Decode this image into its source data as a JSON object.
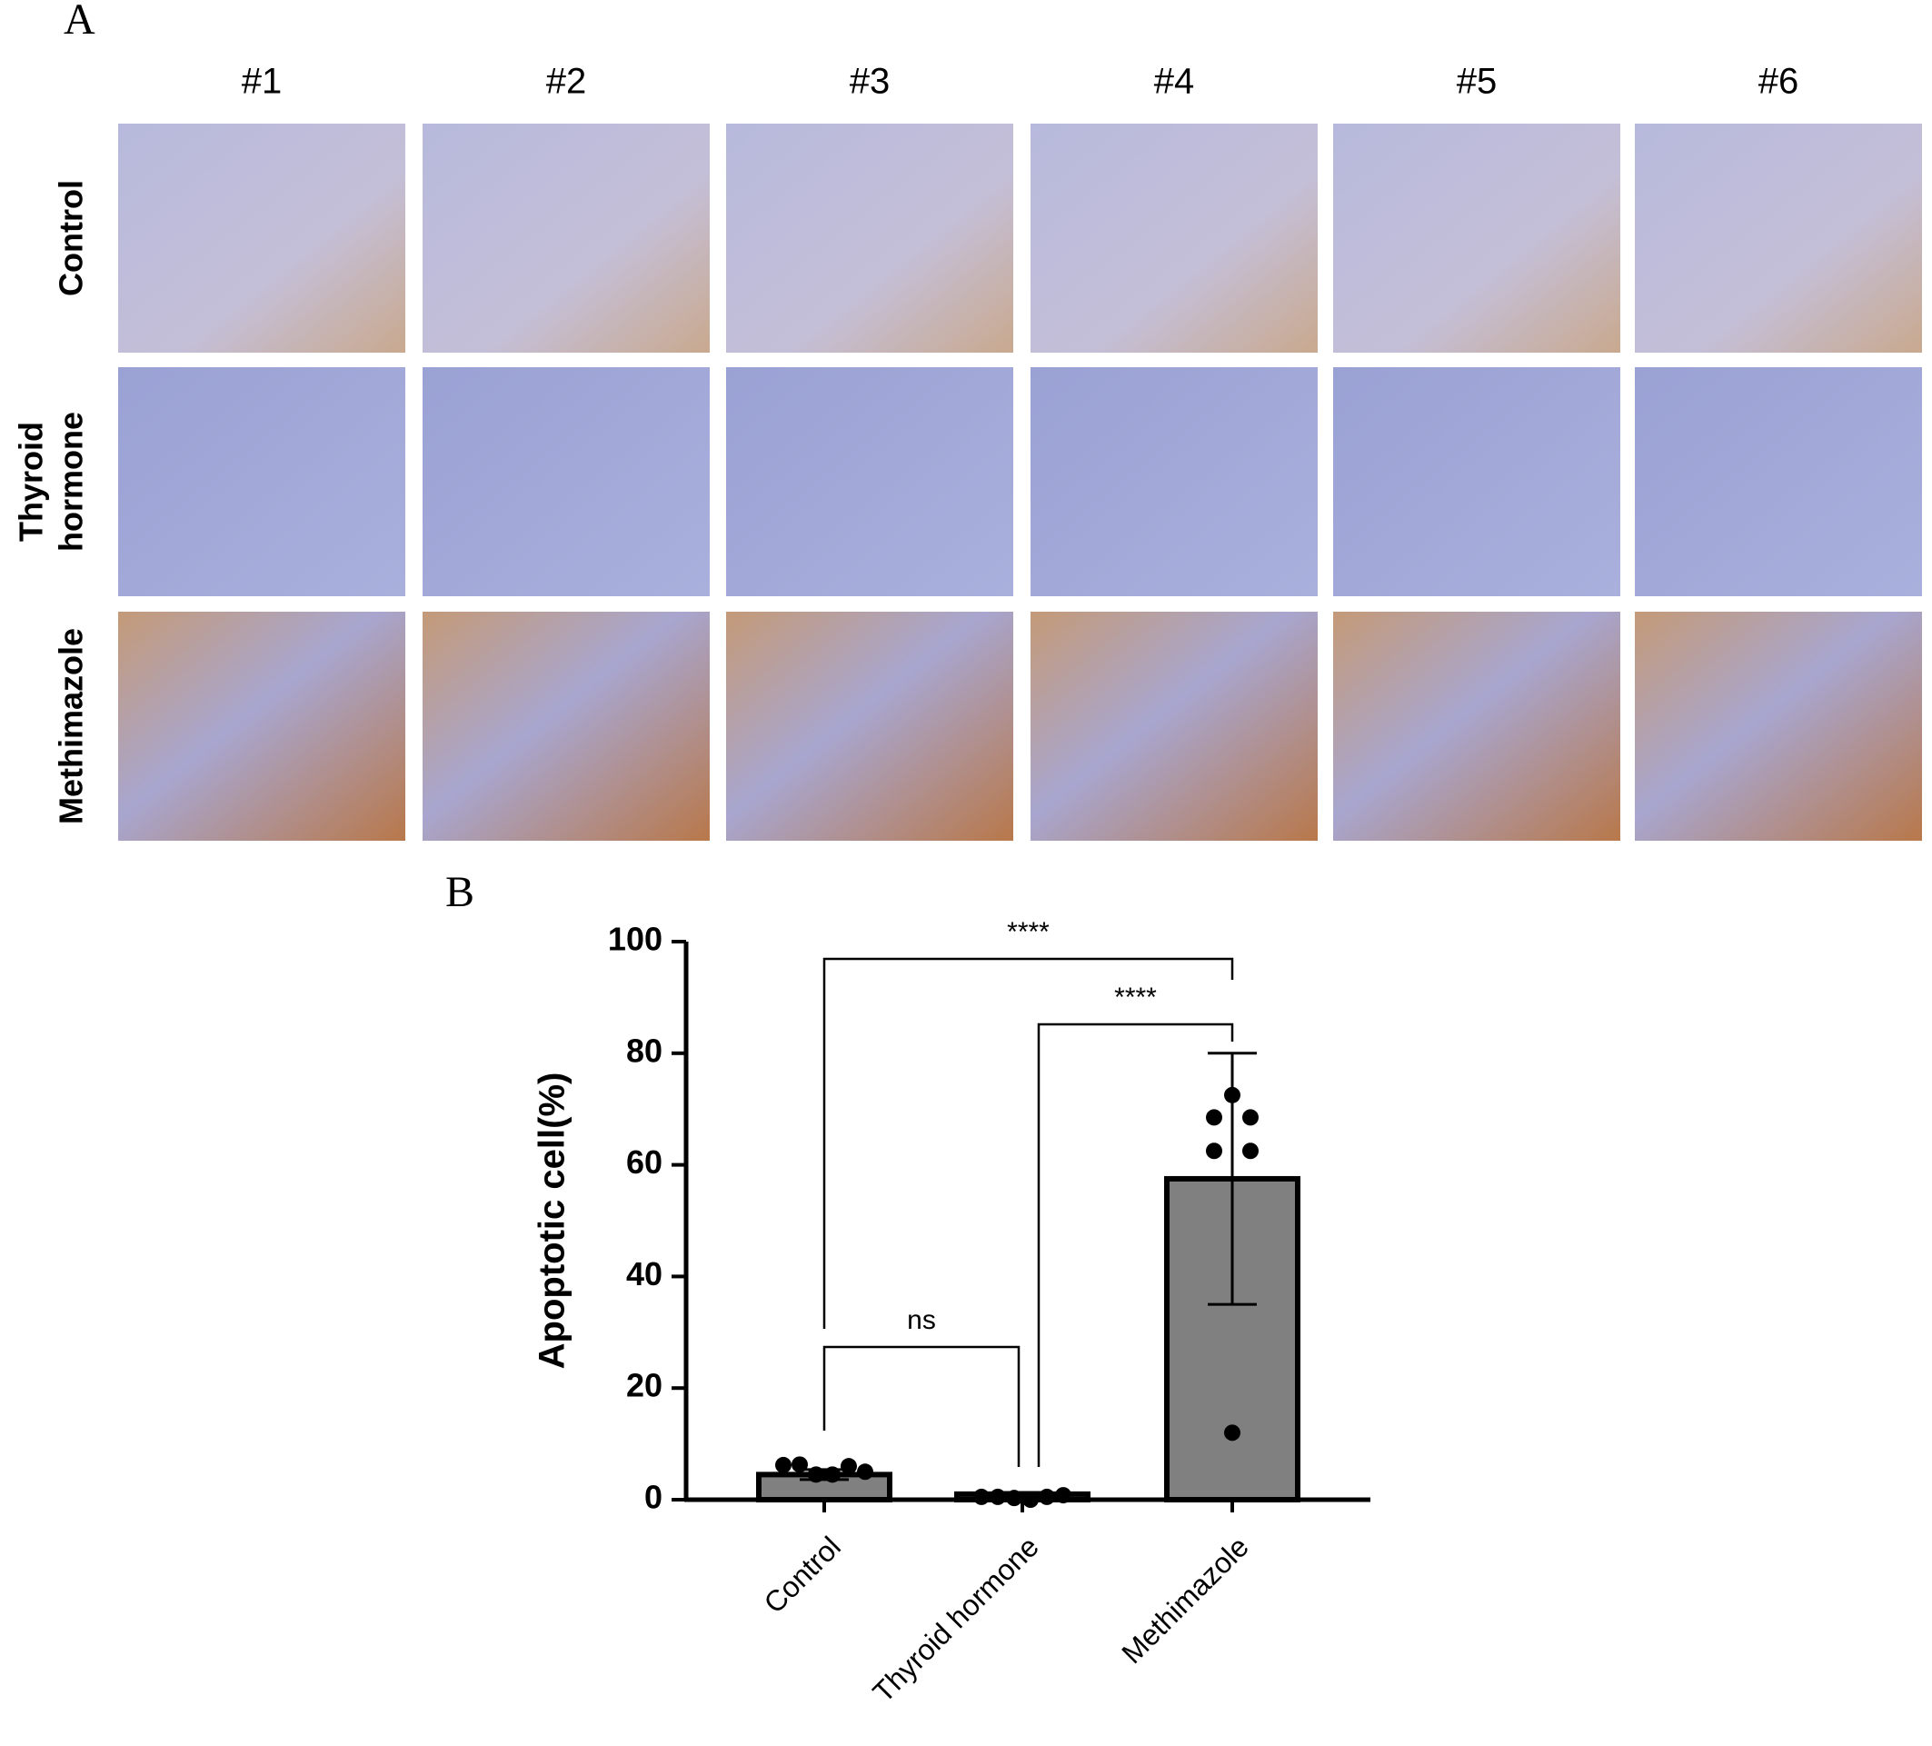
{
  "panel_a": {
    "label": "A",
    "columns": [
      "#1",
      "#2",
      "#3",
      "#4",
      "#5",
      "#6"
    ],
    "rows": [
      [
        "Control"
      ],
      [
        "Thyroid",
        "hormone"
      ],
      [
        "Methimazole"
      ]
    ]
  },
  "chart_data": {
    "type": "bar",
    "panel_label": "B",
    "y_label": "Apoptotic cell(%)",
    "categories": [
      "Control",
      "Thyroid hormone",
      "Methimazole"
    ],
    "values": [
      4.5,
      1,
      57.5
    ],
    "errors": [
      0.9,
      0.3,
      22.5
    ],
    "points": [
      [
        6.2,
        6.3,
        4.5,
        4.5,
        6,
        5
      ],
      [
        0.5,
        0.5,
        0.3,
        0,
        0.5,
        0.8
      ],
      [
        72.5,
        68.5,
        68.5,
        62.5,
        62.5,
        12
      ]
    ],
    "color": "#808080",
    "ylim": [
      0,
      100
    ],
    "yticks": [
      0,
      20,
      40,
      60,
      80,
      100
    ],
    "comparisons": [
      {
        "from": 0,
        "to": 2,
        "label": "****"
      },
      {
        "from": 1,
        "to": 2,
        "label": "****"
      },
      {
        "from": 0,
        "to": 1,
        "label": "ns"
      }
    ]
  }
}
